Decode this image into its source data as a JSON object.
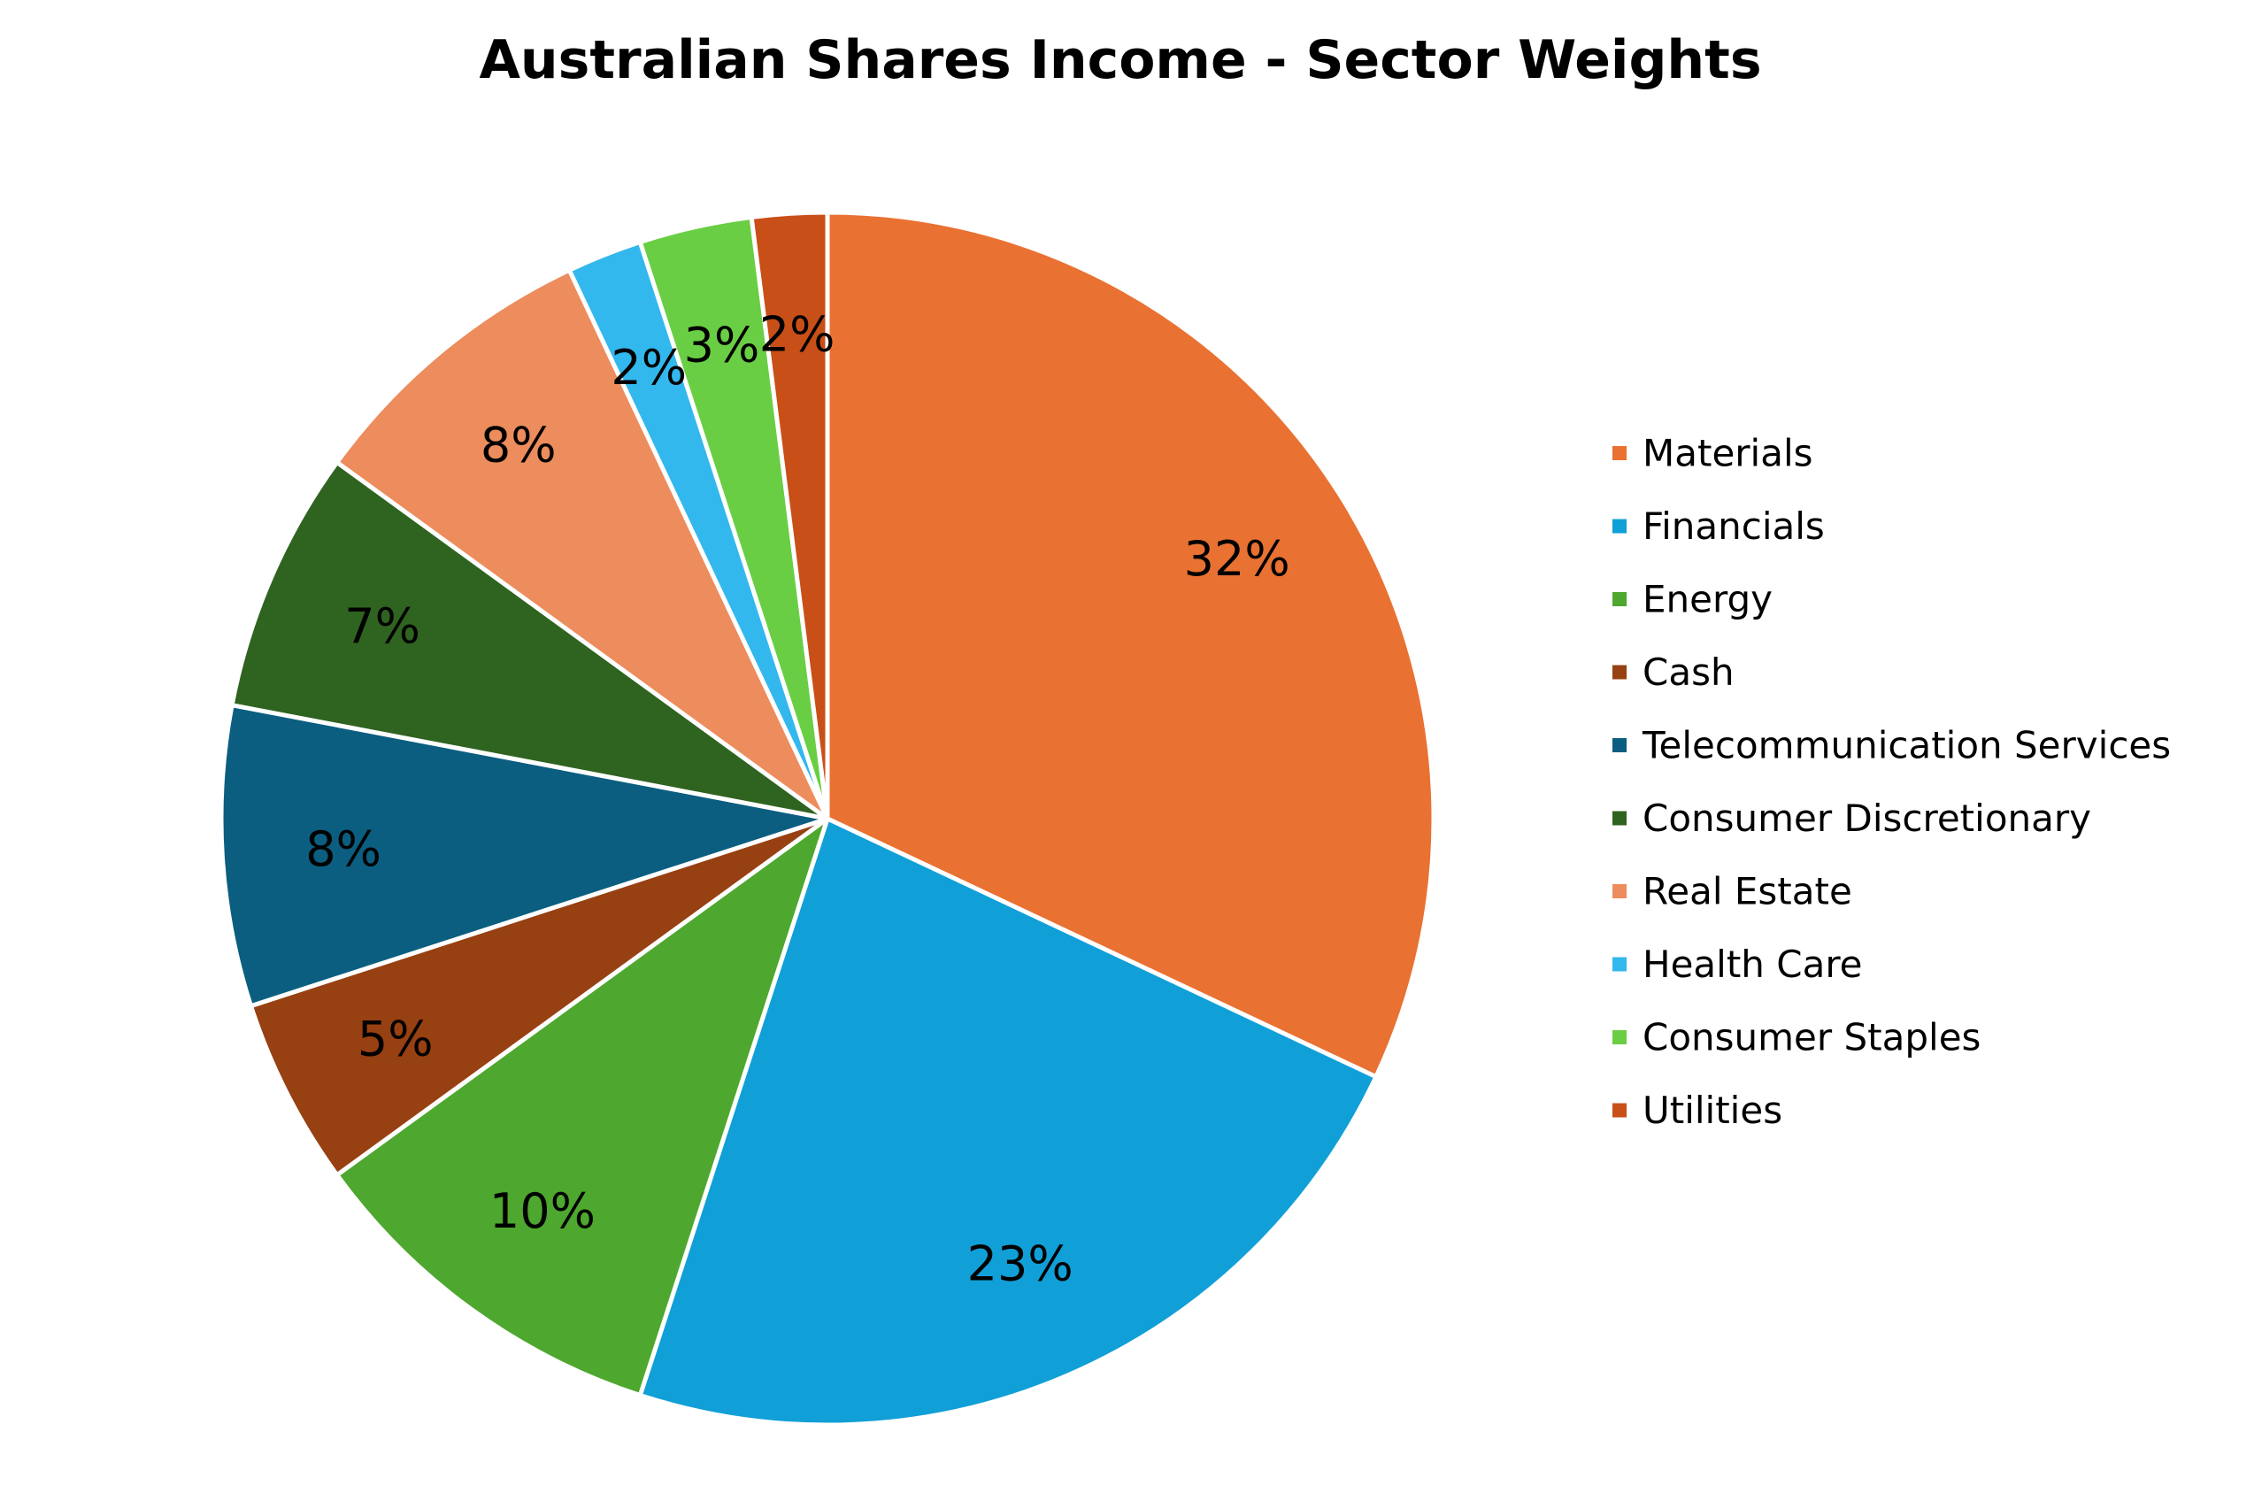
{
  "chart_data": {
    "type": "pie",
    "title": "Australian Shares Income - Sector Weights",
    "start_angle_deg": 0,
    "direction": "clockwise",
    "legend_position": "right",
    "slices": [
      {
        "name": "Materials",
        "value": 32,
        "label": "32%",
        "color": "#E97132"
      },
      {
        "name": "Financials",
        "value": 23,
        "label": "23%",
        "color": "#119FD7"
      },
      {
        "name": "Energy",
        "value": 10,
        "label": "10%",
        "color": "#4EA72E"
      },
      {
        "name": "Cash",
        "value": 5,
        "label": "5%",
        "color": "#974012"
      },
      {
        "name": "Telecommunication Services",
        "value": 8,
        "label": "8%",
        "color": "#0B5E80"
      },
      {
        "name": "Consumer Discretionary",
        "value": 7,
        "label": "7%",
        "color": "#2F6320"
      },
      {
        "name": "Real Estate",
        "value": 8,
        "label": "8%",
        "color": "#ED8C5C"
      },
      {
        "name": "Health Care",
        "value": 2,
        "label": "2%",
        "color": "#33B8EE"
      },
      {
        "name": "Consumer Staples",
        "value": 3,
        "label": "3%",
        "color": "#6ACE44"
      },
      {
        "name": "Utilities",
        "value": 2,
        "label": "2%",
        "color": "#C94F18"
      }
    ]
  }
}
